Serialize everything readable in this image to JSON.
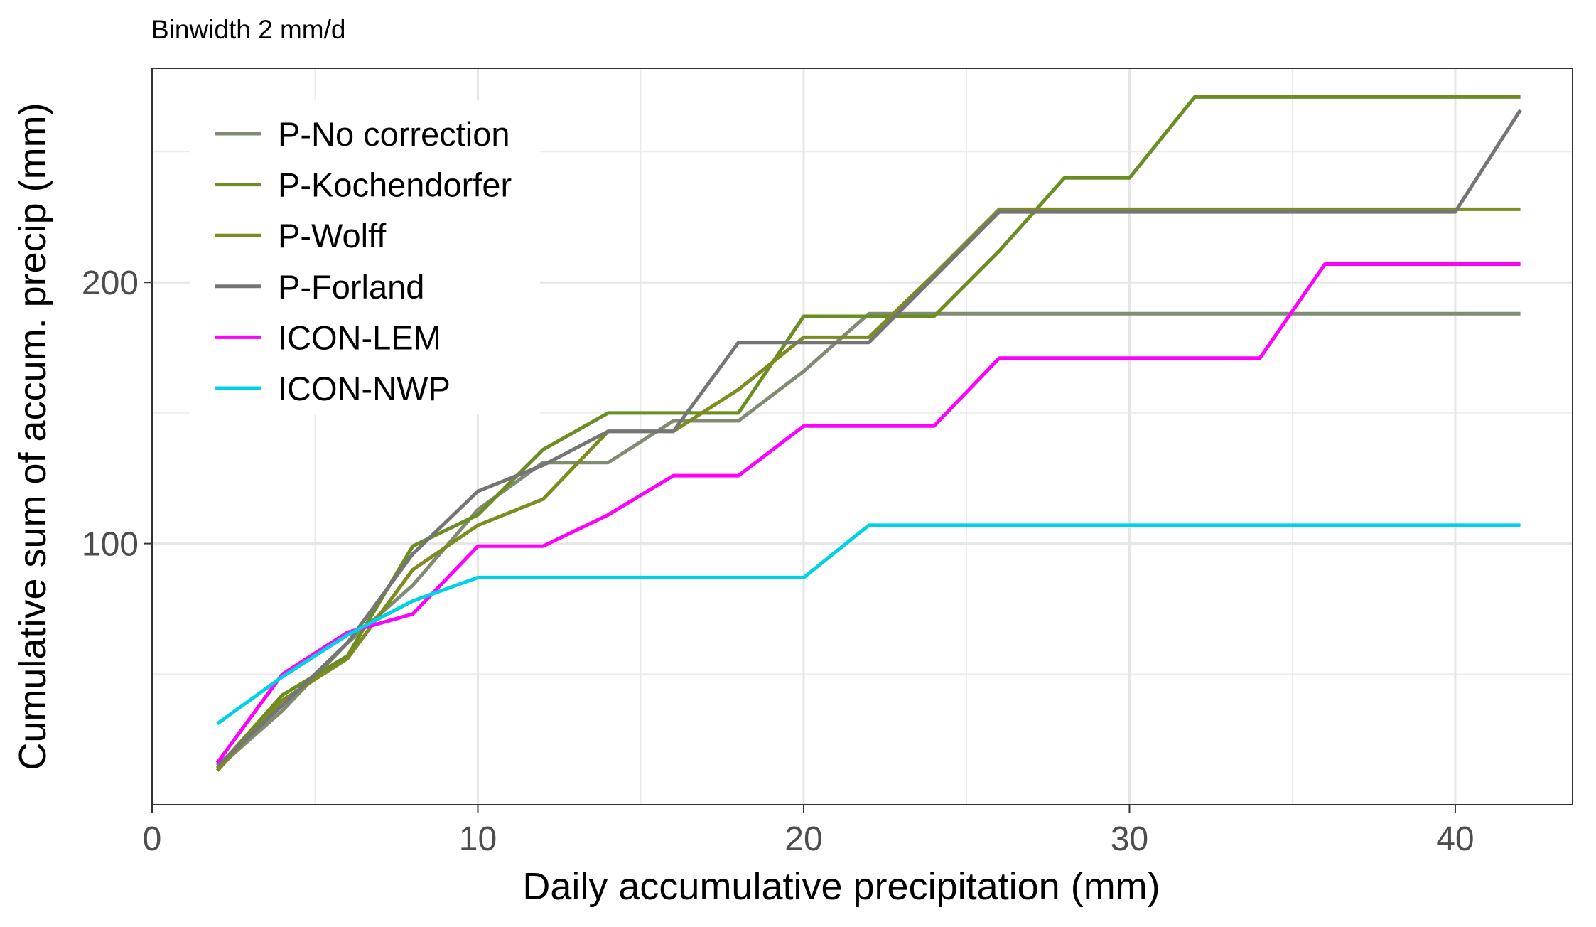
{
  "chart_data": {
    "type": "line",
    "subtitle": "Binwidth 2 mm/d",
    "xlabel": "Daily accumulative precipitation (mm)",
    "ylabel": "Cumulative sum of accum. precip (mm)",
    "xlim": [
      0,
      43.6
    ],
    "ylim": [
      0,
      282
    ],
    "x_ticks": [
      0,
      10,
      20,
      30,
      40
    ],
    "y_ticks": [
      100,
      200
    ],
    "grid": true,
    "legend_position": "top-left inside",
    "x": [
      2,
      4,
      6,
      8,
      10,
      12,
      14,
      16,
      18,
      20,
      22,
      24,
      26,
      28,
      30,
      32,
      34,
      36,
      38,
      40,
      42
    ],
    "series": [
      {
        "name": "P-No correction",
        "color": "#7f8c73",
        "values": [
          14,
          36,
          62,
          84,
          113,
          131,
          131,
          147,
          147,
          166,
          188,
          188,
          188,
          188,
          188,
          188,
          188,
          188,
          188,
          188,
          188
        ]
      },
      {
        "name": "P-Kochendorfer",
        "color": "#6b8e23",
        "values": [
          14,
          42,
          57,
          99,
          111,
          136,
          150,
          150,
          150,
          187,
          187,
          187,
          212,
          240,
          240,
          271,
          271,
          271,
          271,
          271,
          271
        ]
      },
      {
        "name": "P-Wolff",
        "color": "#7e8b20",
        "values": [
          13,
          40,
          56,
          90,
          107,
          117,
          143,
          143,
          159,
          179,
          179,
          203,
          228,
          228,
          228,
          228,
          228,
          228,
          228,
          228,
          228
        ]
      },
      {
        "name": "P-Forland",
        "color": "#757575",
        "values": [
          15,
          38,
          62,
          96,
          120,
          130,
          143,
          143,
          177,
          177,
          177,
          202,
          227,
          227,
          227,
          227,
          227,
          227,
          227,
          227,
          266
        ]
      },
      {
        "name": "ICON-LEM",
        "color": "#ff00ff",
        "values": [
          16,
          50,
          66,
          73,
          99,
          99,
          111,
          126,
          126,
          145,
          145,
          145,
          171,
          171,
          171,
          171,
          171,
          207,
          207,
          207,
          207
        ]
      },
      {
        "name": "ICON-NWP",
        "color": "#00d2e6",
        "values": [
          31,
          49,
          65,
          78,
          87,
          87,
          87,
          87,
          87,
          87,
          107,
          107,
          107,
          107,
          107,
          107,
          107,
          107,
          107,
          107,
          107
        ]
      }
    ]
  }
}
